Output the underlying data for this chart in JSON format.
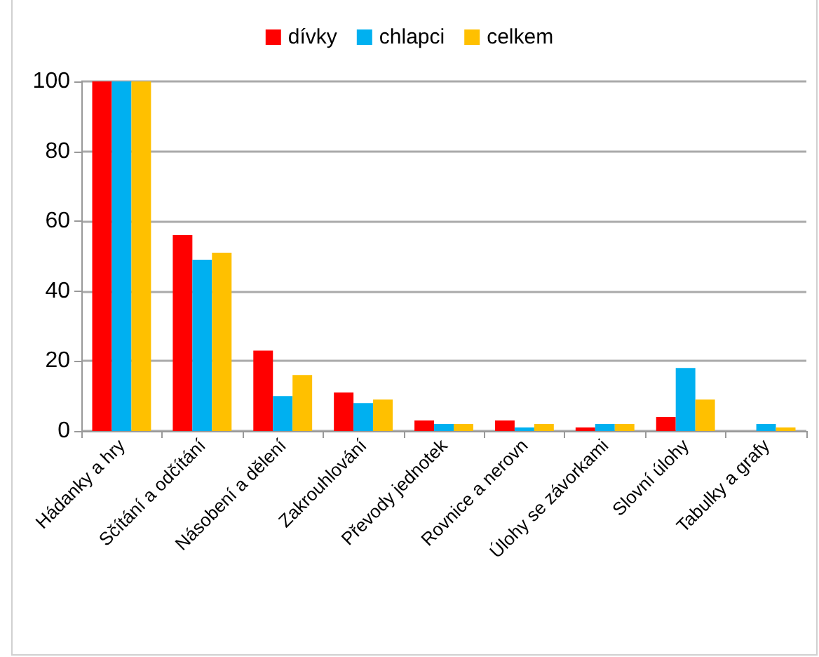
{
  "chart_data": {
    "type": "bar",
    "categories": [
      "Hádanky a hry",
      "Sčítání a odčítání",
      "Násobení a dělení",
      "Zakrouhlování",
      "Převody jednotek",
      "Rovnice a nerovn",
      "Úlohy se závorkami",
      "Slovní úlohy",
      "Tabulky a grafy"
    ],
    "series": [
      {
        "name": "dívky",
        "color": "#ff0000",
        "values": [
          100,
          56,
          23,
          11,
          3,
          3,
          1,
          4,
          0
        ]
      },
      {
        "name": "chlapci",
        "color": "#00b0f0",
        "values": [
          100,
          49,
          10,
          8,
          2,
          1,
          2,
          18,
          2
        ]
      },
      {
        "name": "celkem",
        "color": "#ffc000",
        "values": [
          100,
          51,
          16,
          9,
          2,
          2,
          2,
          9,
          1
        ]
      }
    ],
    "ylim": [
      0,
      100
    ],
    "yticks": [
      0,
      20,
      40,
      60,
      80,
      100
    ],
    "grid": "y",
    "legend": "top"
  }
}
